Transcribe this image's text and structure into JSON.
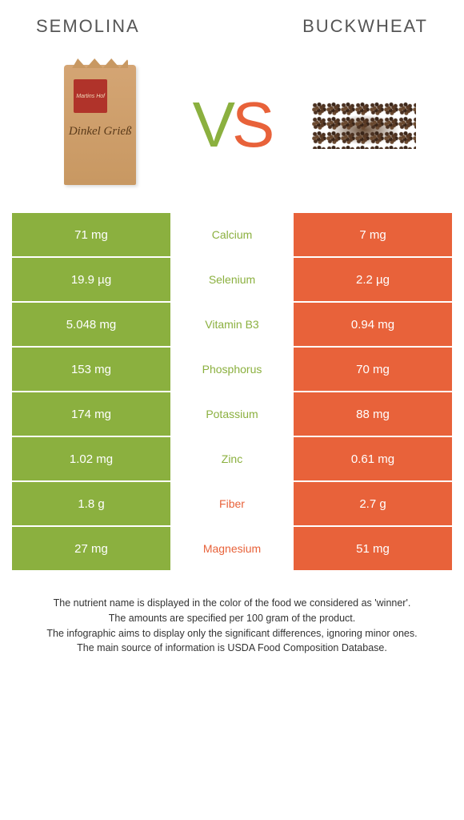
{
  "header": {
    "left_title": "SEMOLINA",
    "right_title": "BUCKWHEAT"
  },
  "colors": {
    "green": "#8bb03f",
    "orange": "#e8623a"
  },
  "semolina_bag": {
    "brand": "Martins Hof",
    "product": "Dinkel Grieß"
  },
  "vs": {
    "v": "V",
    "s": "S"
  },
  "rows": [
    {
      "left": "71 mg",
      "label": "Calcium",
      "right": "7 mg",
      "winner": "left"
    },
    {
      "left": "19.9 µg",
      "label": "Selenium",
      "right": "2.2 µg",
      "winner": "left"
    },
    {
      "left": "5.048 mg",
      "label": "Vitamin B3",
      "right": "0.94 mg",
      "winner": "left"
    },
    {
      "left": "153 mg",
      "label": "Phosphorus",
      "right": "70 mg",
      "winner": "left"
    },
    {
      "left": "174 mg",
      "label": "Potassium",
      "right": "88 mg",
      "winner": "left"
    },
    {
      "left": "1.02 mg",
      "label": "Zinc",
      "right": "0.61 mg",
      "winner": "left"
    },
    {
      "left": "1.8 g",
      "label": "Fiber",
      "right": "2.7 g",
      "winner": "right"
    },
    {
      "left": "27 mg",
      "label": "Magnesium",
      "right": "51 mg",
      "winner": "right"
    }
  ],
  "footer": {
    "line1": "The nutrient name is displayed in the color of the food we considered as 'winner'.",
    "line2": "The amounts are specified per 100 gram of the product.",
    "line3": "The infographic aims to display only the significant differences, ignoring minor ones.",
    "line4": "The main source of information is USDA Food Composition Database."
  }
}
